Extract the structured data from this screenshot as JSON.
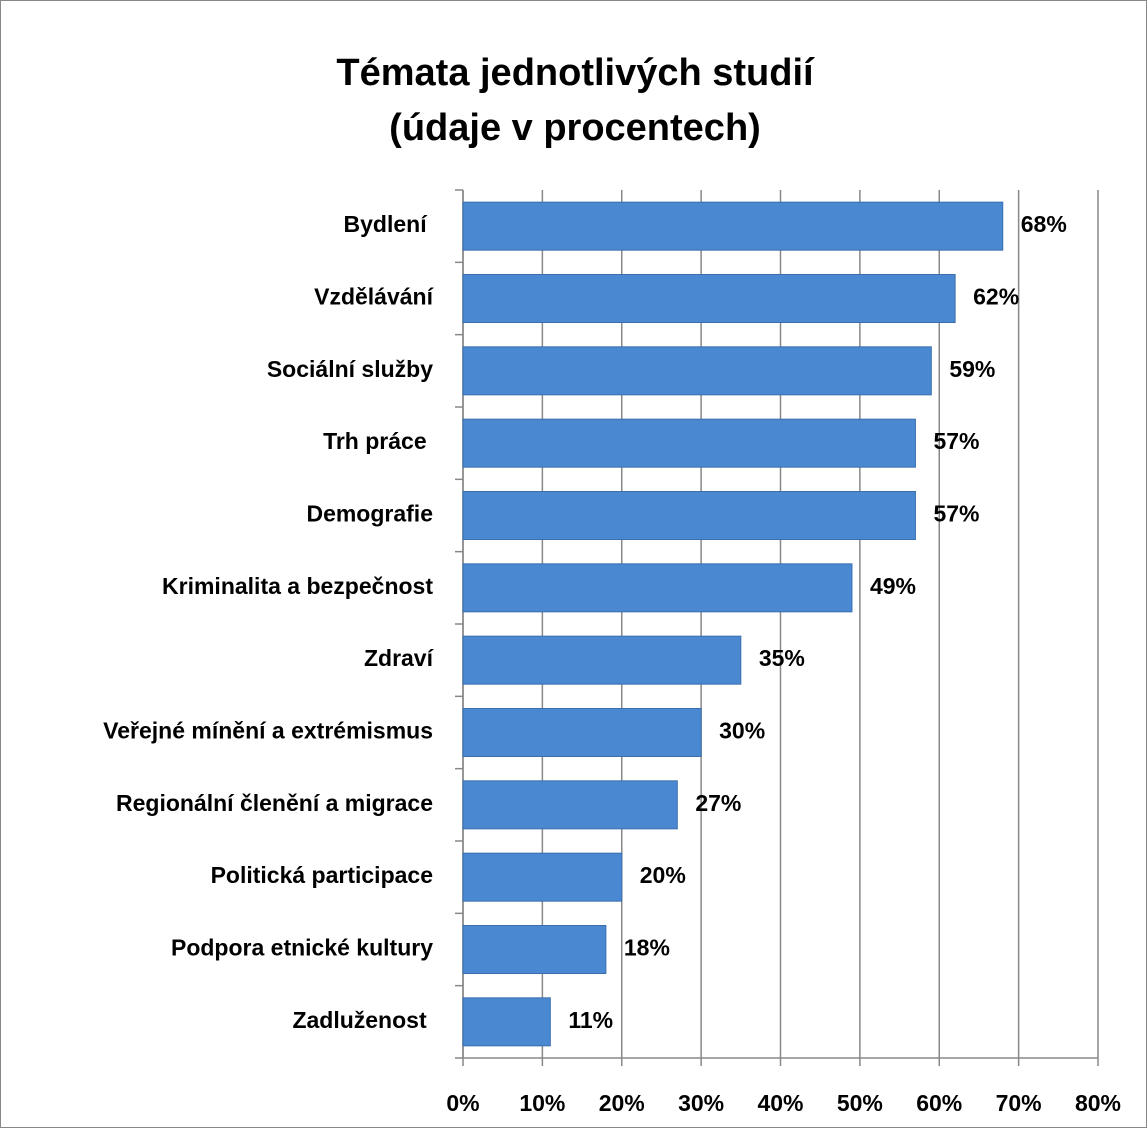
{
  "chart_data": {
    "type": "hbar",
    "title": [
      "Témata jednotlivých studií",
      "(údaje v procentech)"
    ],
    "categories": [
      "Bydlení ",
      "Vzdělávání",
      "Sociální služby",
      "Trh práce ",
      "Demografie",
      "Kriminalita a bezpečnost",
      "Zdraví",
      "Veřejné mínění a extrémismus",
      "Regionální členění a migrace",
      "Politická participace",
      "Podpora etnické kultury",
      "Zadluženost "
    ],
    "values": [
      68,
      62,
      59,
      57,
      57,
      49,
      35,
      30,
      27,
      20,
      18,
      11
    ],
    "value_labels": [
      "68%",
      "62%",
      "59%",
      "57%",
      "57%",
      "49%",
      "35%",
      "30%",
      "27%",
      "20%",
      "18%",
      "11%"
    ],
    "color": "#4a89d2",
    "xlim": [
      0,
      80
    ],
    "xticks": [
      {
        "value": 0,
        "label": "0%"
      },
      {
        "value": 10,
        "label": "10%"
      },
      {
        "value": 20,
        "label": "20%"
      },
      {
        "value": 30,
        "label": "30%"
      },
      {
        "value": 40,
        "label": "40%"
      },
      {
        "value": 50,
        "label": "50%"
      },
      {
        "value": 60,
        "label": "60%"
      },
      {
        "value": 70,
        "label": "70%"
      },
      {
        "value": 80,
        "label": "80%"
      }
    ],
    "grid": true
  }
}
